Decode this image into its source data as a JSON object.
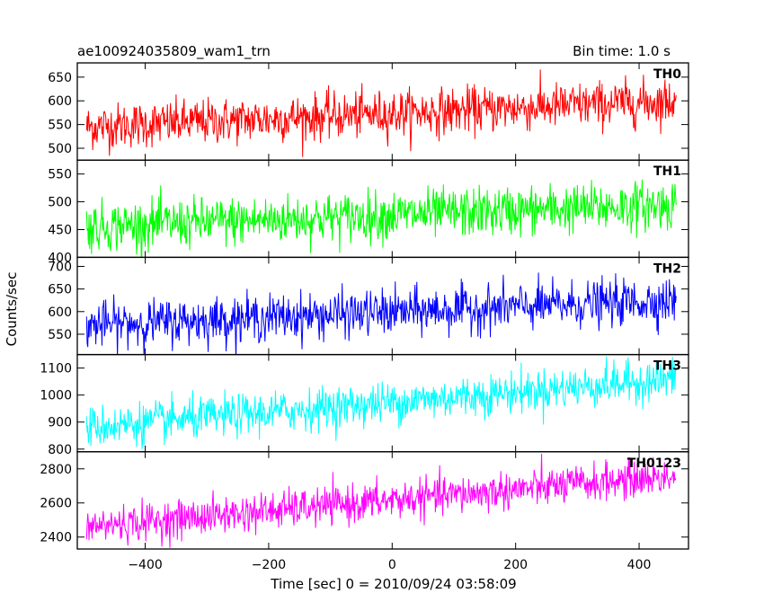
{
  "title_left": "ae100924035809_wam1_trn",
  "title_right": "Bin time: 1.0 s",
  "chart_data": {
    "type": "line",
    "title": "ae100924035809_wam1_trn",
    "subtitle": "Bin time: 1.0 s",
    "xlabel": "Time [sec] 0 = 2010/09/24 03:58:09",
    "ylabel": "Counts/sec",
    "xlim": [
      -510,
      480
    ],
    "x_ticks": [
      -400,
      -200,
      0,
      200,
      400
    ],
    "x_tick_labels": [
      "−400",
      "−200",
      "0",
      "200",
      "400"
    ],
    "x_range_data": [
      -495,
      460
    ],
    "bin_time": 1.0,
    "grid": false,
    "legend": "none",
    "panels": [
      {
        "name": "TH0",
        "color": "#ff0000",
        "ylim": [
          475,
          680
        ],
        "y_ticks": [
          500,
          550,
          600,
          650
        ],
        "y_tick_labels": [
          "500",
          "550",
          "600",
          "650"
        ],
        "start_mean": 545,
        "end_mean": 600,
        "noise": 24
      },
      {
        "name": "TH1",
        "color": "#00ff00",
        "ylim": [
          400,
          575
        ],
        "y_ticks": [
          400,
          450,
          500,
          550
        ],
        "y_tick_labels": [
          "400",
          "450",
          "500",
          "550"
        ],
        "start_mean": 455,
        "end_mean": 495,
        "noise": 22
      },
      {
        "name": "TH2",
        "color": "#0000ff",
        "ylim": [
          505,
          720
        ],
        "y_ticks": [
          550,
          600,
          650,
          700
        ],
        "y_tick_labels": [
          "550",
          "600",
          "650",
          "700"
        ],
        "start_mean": 570,
        "end_mean": 625,
        "noise": 25
      },
      {
        "name": "TH3",
        "color": "#00ffff",
        "ylim": [
          790,
          1150
        ],
        "y_ticks": [
          800,
          900,
          1000,
          1100
        ],
        "y_tick_labels": [
          "800",
          "900",
          "1000",
          "1100"
        ],
        "start_mean": 880,
        "end_mean": 1060,
        "noise": 38
      },
      {
        "name": "TH0123",
        "color": "#ff00ff",
        "ylim": [
          2330,
          2900
        ],
        "y_ticks": [
          2400,
          2600,
          2800
        ],
        "y_tick_labels": [
          "2400",
          "2600",
          "2800"
        ],
        "start_mean": 2460,
        "end_mean": 2760,
        "noise": 55
      }
    ]
  }
}
